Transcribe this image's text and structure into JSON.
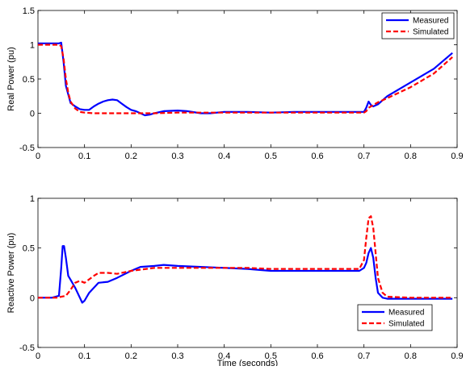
{
  "chart_data": [
    {
      "type": "line",
      "title": "",
      "xlabel": "",
      "ylabel": "Real Power (pu)",
      "xlim": [
        0,
        0.9
      ],
      "ylim": [
        -0.5,
        1.5
      ],
      "xticks": [
        0,
        0.1,
        0.2,
        0.3,
        0.4,
        0.5,
        0.6,
        0.7,
        0.8,
        0.9
      ],
      "xtick_labels": [
        "0",
        "0.1",
        "0.2",
        "0.3",
        "0.4",
        "0.5",
        "0.6",
        "0.7",
        "0.8",
        "0.9"
      ],
      "yticks": [
        -0.5,
        0,
        0.5,
        1,
        1.5
      ],
      "ytick_labels": [
        "-0.5",
        "0",
        "0.5",
        "1",
        "1.5"
      ],
      "grid": false,
      "legend_position": "top-right",
      "series": [
        {
          "name": "Measured",
          "color": "#0000ff",
          "style": "solid",
          "x": [
            0,
            0.02,
            0.045,
            0.05,
            0.055,
            0.06,
            0.07,
            0.08,
            0.09,
            0.1,
            0.11,
            0.12,
            0.13,
            0.14,
            0.15,
            0.16,
            0.17,
            0.18,
            0.19,
            0.2,
            0.21,
            0.22,
            0.23,
            0.24,
            0.25,
            0.27,
            0.3,
            0.32,
            0.35,
            0.37,
            0.4,
            0.45,
            0.5,
            0.55,
            0.6,
            0.65,
            0.7,
            0.705,
            0.71,
            0.715,
            0.72,
            0.73,
            0.75,
            0.8,
            0.85,
            0.89
          ],
          "y": [
            1.02,
            1.02,
            1.02,
            1.03,
            0.75,
            0.4,
            0.15,
            0.1,
            0.06,
            0.05,
            0.05,
            0.1,
            0.14,
            0.17,
            0.19,
            0.2,
            0.19,
            0.14,
            0.09,
            0.05,
            0.03,
            0.0,
            -0.03,
            -0.02,
            0.0,
            0.03,
            0.04,
            0.03,
            0.0,
            0.0,
            0.02,
            0.02,
            0.01,
            0.02,
            0.02,
            0.02,
            0.02,
            0.08,
            0.17,
            0.12,
            0.1,
            0.13,
            0.25,
            0.45,
            0.65,
            0.88
          ]
        },
        {
          "name": "Simulated",
          "color": "#ff0000",
          "style": "dashed",
          "x": [
            0,
            0.045,
            0.05,
            0.055,
            0.06,
            0.065,
            0.07,
            0.08,
            0.09,
            0.1,
            0.12,
            0.15,
            0.2,
            0.25,
            0.3,
            0.35,
            0.4,
            0.5,
            0.6,
            0.7,
            0.705,
            0.71,
            0.72,
            0.73,
            0.75,
            0.8,
            0.85,
            0.89
          ],
          "y": [
            1.0,
            1.0,
            0.98,
            0.8,
            0.5,
            0.3,
            0.17,
            0.07,
            0.02,
            0.01,
            0.0,
            0.0,
            0.0,
            0.0,
            0.01,
            0.01,
            0.01,
            0.01,
            0.01,
            0.01,
            0.03,
            0.08,
            0.12,
            0.16,
            0.22,
            0.38,
            0.58,
            0.82
          ]
        }
      ]
    },
    {
      "type": "line",
      "title": "",
      "xlabel": "Time (seconds)",
      "ylabel": "Reactive Power (pu)",
      "xlim": [
        0,
        0.9
      ],
      "ylim": [
        -0.5,
        1
      ],
      "xticks": [
        0,
        0.1,
        0.2,
        0.3,
        0.4,
        0.5,
        0.6,
        0.7,
        0.8,
        0.9
      ],
      "xtick_labels": [
        "0",
        "0.1",
        "0.2",
        "0.3",
        "0.4",
        "0.5",
        "0.6",
        "0.7",
        "0.8",
        "0.9"
      ],
      "yticks": [
        -0.5,
        0,
        0.5,
        1
      ],
      "ytick_labels": [
        "-0.5",
        "0",
        "0.5",
        "1"
      ],
      "grid": false,
      "legend_position": "bottom-right",
      "series": [
        {
          "name": "Measured",
          "color": "#0000ff",
          "style": "solid",
          "x": [
            0,
            0.03,
            0.045,
            0.05,
            0.053,
            0.056,
            0.06,
            0.065,
            0.07,
            0.08,
            0.09,
            0.095,
            0.1,
            0.11,
            0.12,
            0.13,
            0.15,
            0.17,
            0.2,
            0.22,
            0.25,
            0.27,
            0.3,
            0.35,
            0.4,
            0.45,
            0.5,
            0.55,
            0.6,
            0.65,
            0.69,
            0.7,
            0.705,
            0.71,
            0.715,
            0.72,
            0.725,
            0.73,
            0.74,
            0.75,
            0.8,
            0.85,
            0.89
          ],
          "y": [
            0,
            0,
            0.02,
            0.3,
            0.52,
            0.52,
            0.4,
            0.22,
            0.18,
            0.1,
            0.0,
            -0.05,
            -0.03,
            0.05,
            0.1,
            0.15,
            0.16,
            0.2,
            0.27,
            0.31,
            0.32,
            0.33,
            0.32,
            0.31,
            0.3,
            0.29,
            0.27,
            0.27,
            0.27,
            0.27,
            0.27,
            0.3,
            0.35,
            0.45,
            0.5,
            0.4,
            0.2,
            0.05,
            0.0,
            -0.01,
            -0.01,
            -0.01,
            -0.01
          ]
        },
        {
          "name": "Simulated",
          "color": "#ff0000",
          "style": "dashed",
          "x": [
            0,
            0.04,
            0.06,
            0.07,
            0.08,
            0.09,
            0.1,
            0.12,
            0.13,
            0.15,
            0.17,
            0.2,
            0.25,
            0.3,
            0.35,
            0.4,
            0.45,
            0.5,
            0.55,
            0.6,
            0.65,
            0.69,
            0.7,
            0.705,
            0.71,
            0.715,
            0.72,
            0.725,
            0.73,
            0.74,
            0.75,
            0.8,
            0.85,
            0.89
          ],
          "y": [
            0,
            0,
            0.02,
            0.08,
            0.15,
            0.17,
            0.15,
            0.22,
            0.25,
            0.25,
            0.24,
            0.27,
            0.3,
            0.3,
            0.3,
            0.3,
            0.3,
            0.29,
            0.29,
            0.29,
            0.29,
            0.29,
            0.38,
            0.6,
            0.8,
            0.82,
            0.7,
            0.45,
            0.2,
            0.05,
            0.01,
            0.0,
            0.0,
            0.0
          ]
        }
      ]
    }
  ]
}
